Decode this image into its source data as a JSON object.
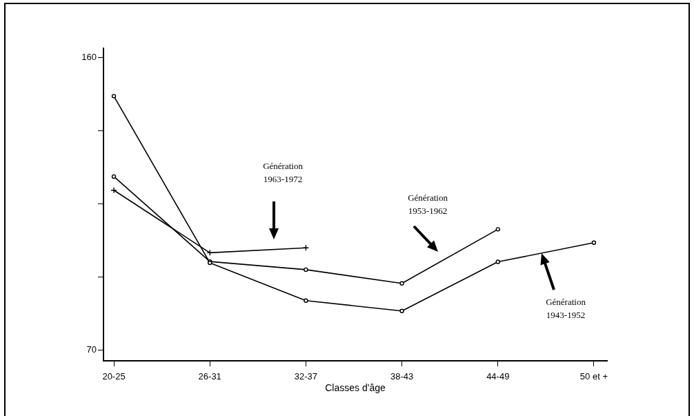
{
  "chart_data": {
    "type": "line",
    "xlabel": "Classes d'âge",
    "categories": [
      "20-25",
      "26-31",
      "32-37",
      "38-43",
      "44-49",
      "50 et +"
    ],
    "series": [
      {
        "color": "#000000",
        "marker": "circle",
        "values": [
          148.1,
          96.9,
          85.3,
          82.1,
          97.2,
          103.1
        ]
      },
      {
        "color": "#000000",
        "marker": "circle",
        "values": [
          123.4,
          97.3,
          94.8,
          90.6,
          107.2,
          null
        ]
      },
      {
        "color": "#000000",
        "marker": "cross",
        "values": [
          119.2,
          100.0,
          101.5,
          null,
          null,
          null
        ]
      }
    ],
    "ylim": [
      66.8,
      162.8
    ],
    "yticks": [
      {
        "value": 70,
        "label": "70"
      },
      {
        "value": 92.5,
        "label": null
      },
      {
        "value": 115,
        "label": null
      },
      {
        "value": 137.5,
        "label": null
      },
      {
        "value": 160,
        "label": "160"
      }
    ],
    "grid": false,
    "legend": false,
    "line_style": "solid",
    "annotations": [
      "Génération 1963-1972",
      "Génération 1953-1962",
      "Génération 1943-1952"
    ]
  }
}
